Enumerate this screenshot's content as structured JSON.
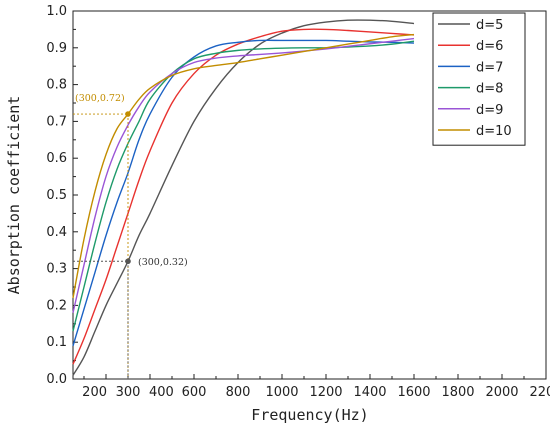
{
  "chart_data": {
    "type": "line",
    "xlabel": "Frequency(Hz)",
    "ylabel": "Absorption coefficient",
    "xlim": [
      50,
      2200
    ],
    "ylim": [
      0,
      1.0
    ],
    "x_ticks": [
      200,
      300,
      400,
      600,
      800,
      1000,
      1200,
      1400,
      1600,
      1800,
      2000,
      2200
    ],
    "y_ticks": [
      0.0,
      0.1,
      0.2,
      0.3,
      0.4,
      0.5,
      0.6,
      0.7,
      0.8,
      0.9,
      1.0
    ],
    "grid": false,
    "legend_position": "top-right",
    "series": [
      {
        "name": "d=5",
        "color": "#555555",
        "x": [
          50,
          100,
          150,
          200,
          250,
          300,
          350,
          400,
          500,
          600,
          700,
          800,
          900,
          1000,
          1100,
          1200,
          1300,
          1400,
          1500,
          1600
        ],
        "y": [
          0.01,
          0.06,
          0.13,
          0.2,
          0.26,
          0.32,
          0.39,
          0.45,
          0.58,
          0.7,
          0.79,
          0.86,
          0.91,
          0.94,
          0.96,
          0.97,
          0.975,
          0.975,
          0.972,
          0.966
        ]
      },
      {
        "name": "d=6",
        "color": "#e8322f",
        "x": [
          50,
          100,
          150,
          200,
          250,
          300,
          350,
          400,
          500,
          600,
          700,
          800,
          900,
          1000,
          1100,
          1200,
          1300,
          1400,
          1500,
          1600
        ],
        "y": [
          0.04,
          0.11,
          0.19,
          0.27,
          0.36,
          0.45,
          0.54,
          0.62,
          0.75,
          0.83,
          0.88,
          0.91,
          0.93,
          0.945,
          0.95,
          0.95,
          0.947,
          0.943,
          0.939,
          0.935
        ]
      },
      {
        "name": "d=7",
        "color": "#1c62c4",
        "x": [
          50,
          100,
          150,
          200,
          250,
          300,
          350,
          400,
          500,
          600,
          700,
          800,
          900,
          1000,
          1100,
          1200,
          1300,
          1400,
          1500,
          1600
        ],
        "y": [
          0.09,
          0.19,
          0.29,
          0.39,
          0.48,
          0.56,
          0.65,
          0.72,
          0.82,
          0.875,
          0.905,
          0.915,
          0.92,
          0.92,
          0.92,
          0.92,
          0.918,
          0.916,
          0.915,
          0.913
        ]
      },
      {
        "name": "d=8",
        "color": "#1e9a6a",
        "x": [
          50,
          100,
          150,
          200,
          250,
          300,
          350,
          400,
          500,
          600,
          700,
          800,
          900,
          1000,
          1100,
          1200,
          1300,
          1400,
          1500,
          1600
        ],
        "y": [
          0.13,
          0.25,
          0.37,
          0.48,
          0.57,
          0.64,
          0.7,
          0.76,
          0.83,
          0.87,
          0.885,
          0.893,
          0.897,
          0.899,
          0.9,
          0.9,
          0.902,
          0.905,
          0.91,
          0.918
        ]
      },
      {
        "name": "d=9",
        "color": "#9a55d6",
        "x": [
          50,
          100,
          150,
          200,
          250,
          300,
          350,
          400,
          500,
          600,
          700,
          800,
          900,
          1000,
          1100,
          1200,
          1300,
          1400,
          1500,
          1600
        ],
        "y": [
          0.18,
          0.31,
          0.44,
          0.55,
          0.63,
          0.69,
          0.74,
          0.78,
          0.83,
          0.86,
          0.872,
          0.878,
          0.882,
          0.886,
          0.891,
          0.897,
          0.904,
          0.911,
          0.918,
          0.925
        ]
      },
      {
        "name": "d=10",
        "color": "#c28d00",
        "x": [
          50,
          100,
          150,
          200,
          250,
          300,
          350,
          400,
          500,
          600,
          700,
          800,
          900,
          1000,
          1100,
          1200,
          1300,
          1400,
          1500,
          1600
        ],
        "y": [
          0.22,
          0.38,
          0.51,
          0.61,
          0.68,
          0.72,
          0.76,
          0.79,
          0.825,
          0.843,
          0.852,
          0.86,
          0.87,
          0.88,
          0.89,
          0.9,
          0.91,
          0.92,
          0.93,
          0.936
        ]
      }
    ],
    "annotations": [
      {
        "text": "(300,0.72)",
        "x": 300,
        "y": 0.72,
        "color": "#c28d00",
        "label_side": "left"
      },
      {
        "text": "(300,0.32)",
        "x": 300,
        "y": 0.32,
        "color": "#555555",
        "label_side": "right"
      }
    ]
  }
}
